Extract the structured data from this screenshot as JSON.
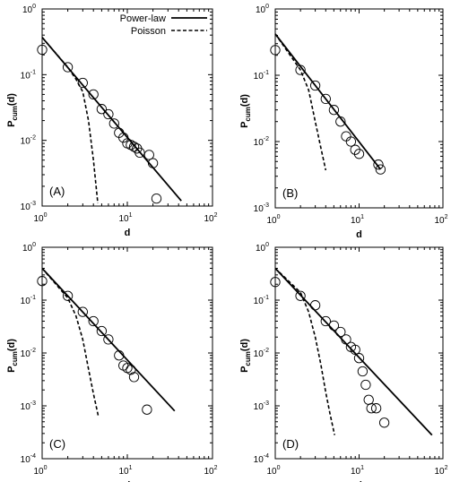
{
  "chart_data": [
    {
      "type": "scatter",
      "panel_label": "(A)",
      "xlabel": "d",
      "ylabel_main": "P",
      "ylabel_sub": "cum",
      "ylabel_tail": "(d)",
      "xscale": "log",
      "yscale": "log",
      "xlim": [
        1,
        100
      ],
      "ylim": [
        0.001,
        1
      ],
      "x_ticks": [
        {
          "base": "10",
          "exp": "0"
        },
        {
          "base": "10",
          "exp": "1"
        },
        {
          "base": "10",
          "exp": "2"
        }
      ],
      "y_ticks": [
        {
          "base": "10",
          "exp": "-3"
        },
        {
          "base": "10",
          "exp": "-2"
        },
        {
          "base": "10",
          "exp": "-1"
        },
        {
          "base": "10",
          "exp": "0"
        }
      ],
      "legend": {
        "position": "top-right",
        "entries": [
          "Power-law",
          "Poisson"
        ]
      },
      "series": [
        {
          "name": "Power-law",
          "kind": "line",
          "style": "solid",
          "x": [
            1,
            43
          ],
          "y": [
            0.37,
            0.0012
          ]
        },
        {
          "name": "Poisson",
          "kind": "line",
          "style": "dashed",
          "x": [
            1,
            2,
            2.5,
            3,
            3.5,
            4,
            4.5
          ],
          "y": [
            0.37,
            0.13,
            0.085,
            0.055,
            0.02,
            0.005,
            0.0011
          ]
        },
        {
          "kind": "points",
          "x": [
            1,
            2,
            3,
            4,
            5,
            6,
            7,
            8,
            9,
            10,
            11,
            12,
            13,
            14,
            18,
            20,
            22
          ],
          "y": [
            0.24,
            0.13,
            0.075,
            0.05,
            0.03,
            0.025,
            0.018,
            0.013,
            0.011,
            0.009,
            0.0085,
            0.008,
            0.0075,
            0.0065,
            0.006,
            0.0045,
            0.0013
          ]
        }
      ]
    },
    {
      "type": "scatter",
      "panel_label": "(B)",
      "xlabel": "d",
      "ylabel_main": "P",
      "ylabel_sub": "cum",
      "ylabel_tail": "(d)",
      "xscale": "log",
      "yscale": "log",
      "xlim": [
        1,
        100
      ],
      "ylim": [
        0.001,
        1
      ],
      "x_ticks": [
        {
          "base": "10",
          "exp": "0"
        },
        {
          "base": "10",
          "exp": "1"
        },
        {
          "base": "10",
          "exp": "2"
        }
      ],
      "y_ticks": [
        {
          "base": "10",
          "exp": "-3"
        },
        {
          "base": "10",
          "exp": "-2"
        },
        {
          "base": "10",
          "exp": "-1"
        },
        {
          "base": "10",
          "exp": "0"
        }
      ],
      "series": [
        {
          "name": "Power-law",
          "kind": "line",
          "style": "solid",
          "x": [
            1,
            18
          ],
          "y": [
            0.42,
            0.0038
          ]
        },
        {
          "name": "Poisson",
          "kind": "line",
          "style": "dashed",
          "x": [
            1,
            2,
            2.5,
            3,
            3.5,
            4
          ],
          "y": [
            0.42,
            0.12,
            0.06,
            0.02,
            0.008,
            0.0037
          ]
        },
        {
          "kind": "points",
          "x": [
            1,
            2,
            3,
            4,
            5,
            6,
            7,
            8,
            9,
            10,
            17,
            18
          ],
          "y": [
            0.24,
            0.12,
            0.07,
            0.044,
            0.03,
            0.02,
            0.012,
            0.01,
            0.0075,
            0.0065,
            0.0045,
            0.0038
          ]
        }
      ]
    },
    {
      "type": "scatter",
      "panel_label": "(C)",
      "xlabel": "d",
      "ylabel_main": "P",
      "ylabel_sub": "cum",
      "ylabel_tail": "(d)",
      "xscale": "log",
      "yscale": "log",
      "xlim": [
        1,
        100
      ],
      "ylim": [
        0.0001,
        1
      ],
      "x_ticks": [
        {
          "base": "10",
          "exp": "0"
        },
        {
          "base": "10",
          "exp": "1"
        },
        {
          "base": "10",
          "exp": "2"
        }
      ],
      "y_ticks": [
        {
          "base": "10",
          "exp": "-4"
        },
        {
          "base": "10",
          "exp": "-3"
        },
        {
          "base": "10",
          "exp": "-2"
        },
        {
          "base": "10",
          "exp": "-1"
        },
        {
          "base": "10",
          "exp": "0"
        }
      ],
      "series": [
        {
          "name": "Power-law",
          "kind": "line",
          "style": "solid",
          "x": [
            1,
            36
          ],
          "y": [
            0.4,
            0.0008
          ]
        },
        {
          "name": "Poisson",
          "kind": "line",
          "style": "dashed",
          "x": [
            1,
            2,
            2.5,
            3,
            3.5,
            4,
            4.6
          ],
          "y": [
            0.4,
            0.11,
            0.05,
            0.018,
            0.005,
            0.0017,
            0.0006
          ]
        },
        {
          "kind": "points",
          "x": [
            1,
            2,
            3,
            4,
            5,
            6,
            8,
            9,
            10,
            11,
            12,
            17
          ],
          "y": [
            0.23,
            0.12,
            0.06,
            0.04,
            0.026,
            0.018,
            0.009,
            0.0058,
            0.0052,
            0.0048,
            0.0035,
            0.00085
          ]
        }
      ]
    },
    {
      "type": "scatter",
      "panel_label": "(D)",
      "xlabel": "d",
      "ylabel_main": "P",
      "ylabel_sub": "cum",
      "ylabel_tail": "(d)",
      "xscale": "log",
      "yscale": "log",
      "xlim": [
        1,
        100
      ],
      "ylim": [
        0.0001,
        1
      ],
      "x_ticks": [
        {
          "base": "10",
          "exp": "0"
        },
        {
          "base": "10",
          "exp": "1"
        },
        {
          "base": "10",
          "exp": "2"
        }
      ],
      "y_ticks": [
        {
          "base": "10",
          "exp": "-4"
        },
        {
          "base": "10",
          "exp": "-3"
        },
        {
          "base": "10",
          "exp": "-2"
        },
        {
          "base": "10",
          "exp": "-1"
        },
        {
          "base": "10",
          "exp": "0"
        }
      ],
      "series": [
        {
          "name": "Power-law",
          "kind": "line",
          "style": "solid",
          "x": [
            1,
            74
          ],
          "y": [
            0.4,
            0.00028
          ]
        },
        {
          "name": "Poisson",
          "kind": "line",
          "style": "dashed",
          "x": [
            1,
            2,
            2.5,
            3,
            3.5,
            4,
            4.5,
            5.1
          ],
          "y": [
            0.4,
            0.14,
            0.06,
            0.02,
            0.006,
            0.0018,
            0.0007,
            0.00028
          ]
        },
        {
          "kind": "points",
          "x": [
            1,
            2,
            3,
            4,
            5,
            6,
            7,
            8,
            9,
            10,
            11,
            12,
            13,
            14,
            16,
            20
          ],
          "y": [
            0.22,
            0.12,
            0.08,
            0.04,
            0.033,
            0.025,
            0.018,
            0.013,
            0.0115,
            0.008,
            0.0045,
            0.0025,
            0.0013,
            0.0009,
            0.0009,
            0.00048
          ]
        }
      ]
    }
  ]
}
